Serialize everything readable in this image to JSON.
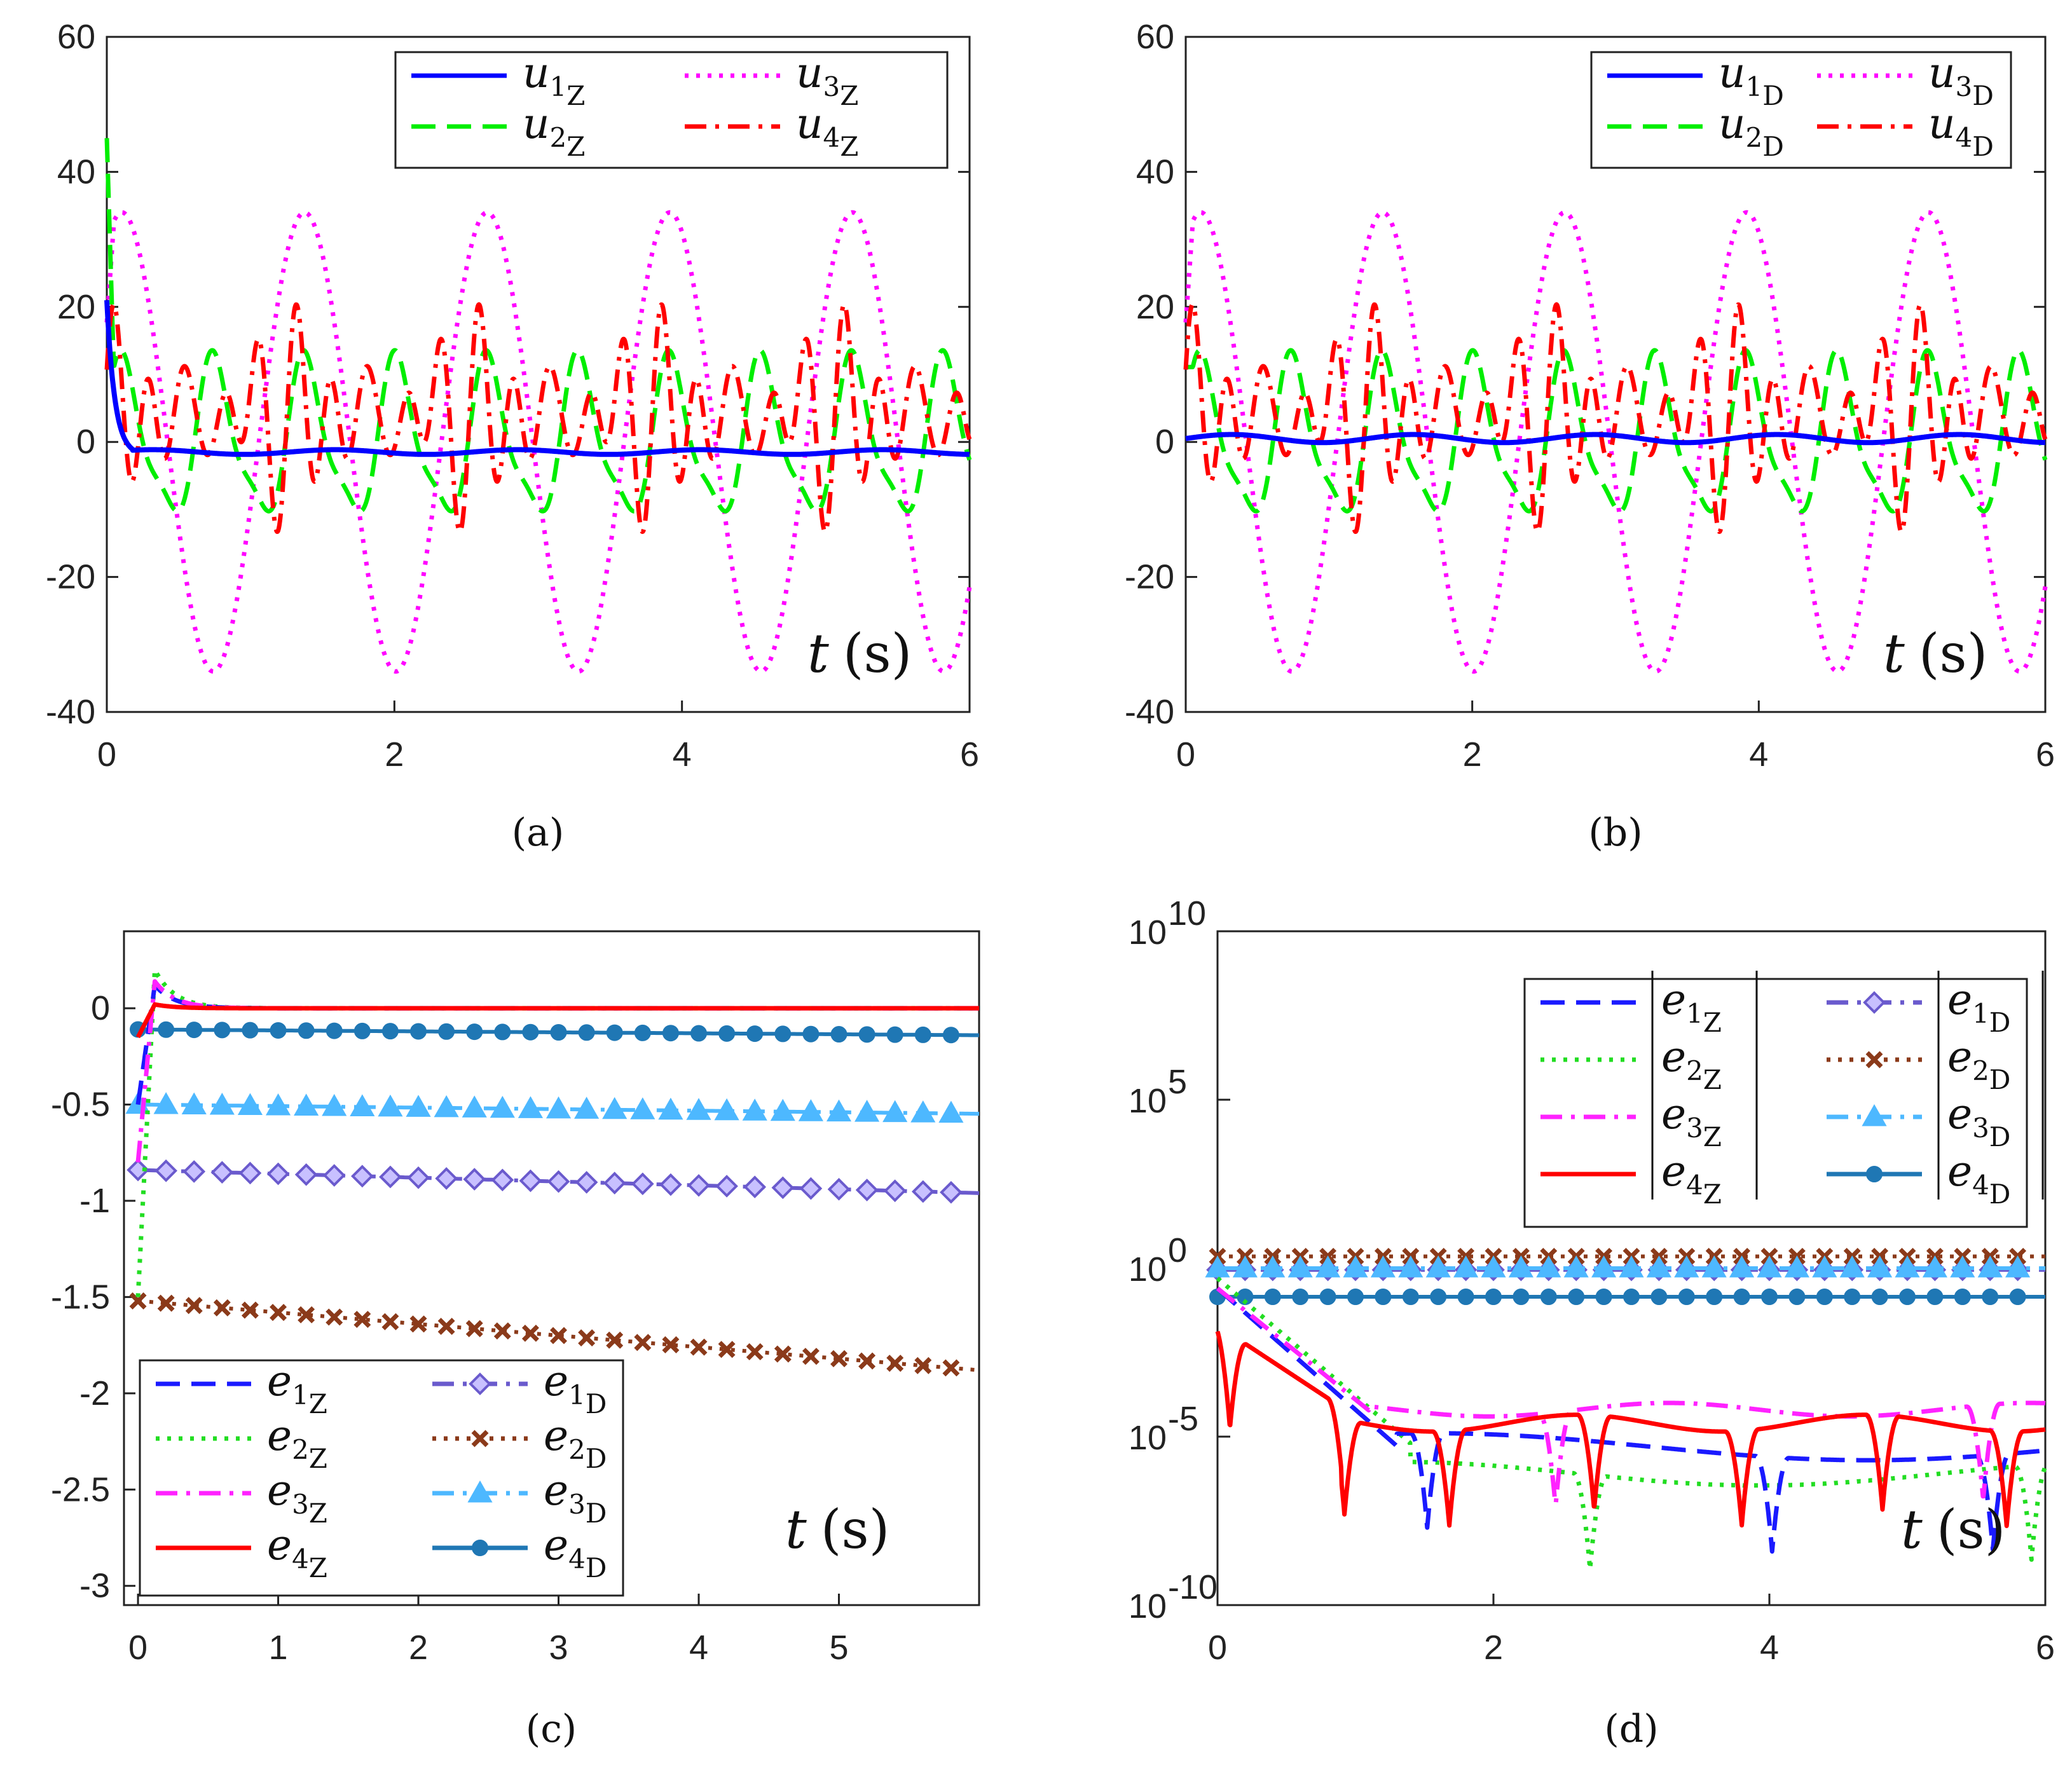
{
  "chart_data": [
    {
      "id": "a",
      "type": "line",
      "caption": "(a)",
      "annotation": {
        "var": "t",
        "unit": "(s)"
      },
      "xlim": [
        0,
        6
      ],
      "ylim": [
        -40,
        60
      ],
      "xticks": [
        "0",
        "2",
        "4",
        "6"
      ],
      "yticks": [
        "60",
        "40",
        "20",
        "0",
        "-20",
        "-40"
      ],
      "series": [
        {
          "name": "u",
          "sub1": "1",
          "sub2": "Z",
          "color": "#0000ff",
          "style": "solid"
        },
        {
          "name": "u",
          "sub1": "2",
          "sub2": "Z",
          "color": "#00ee00",
          "style": "dash"
        },
        {
          "name": "u",
          "sub1": "3",
          "sub2": "Z",
          "color": "#ff00ff",
          "style": "dot"
        },
        {
          "name": "u",
          "sub1": "4",
          "sub2": "Z",
          "color": "#ff0000",
          "style": "dashdot"
        }
      ]
    },
    {
      "id": "b",
      "type": "line",
      "caption": "(b)",
      "annotation": {
        "var": "t",
        "unit": "(s)"
      },
      "xlim": [
        0,
        6
      ],
      "ylim": [
        -40,
        60
      ],
      "xticks": [
        "0",
        "2",
        "4",
        "6"
      ],
      "yticks": [
        "60",
        "40",
        "20",
        "0",
        "-20",
        "-40"
      ],
      "series": [
        {
          "name": "u",
          "sub1": "1",
          "sub2": "D",
          "color": "#0000ff",
          "style": "solid"
        },
        {
          "name": "u",
          "sub1": "2",
          "sub2": "D",
          "color": "#00ee00",
          "style": "dash"
        },
        {
          "name": "u",
          "sub1": "3",
          "sub2": "D",
          "color": "#ff00ff",
          "style": "dot"
        },
        {
          "name": "u",
          "sub1": "4",
          "sub2": "D",
          "color": "#ff0000",
          "style": "dashdot"
        }
      ]
    },
    {
      "id": "c",
      "type": "line",
      "caption": "(c)",
      "annotation": {
        "var": "t",
        "unit": "(s)"
      },
      "xlim": [
        -0.1,
        6
      ],
      "ylim": [
        -3.1,
        0.4
      ],
      "xticks": [
        "0",
        "1",
        "2",
        "3",
        "4",
        "5"
      ],
      "yticks": [
        "0",
        "-0.5",
        "-1",
        "-1.5",
        "-2",
        "-2.5",
        "-3"
      ],
      "series": [
        {
          "name": "e",
          "sub1": "1",
          "sub2": "Z",
          "color": "#1a1aff",
          "style": "dash"
        },
        {
          "name": "e",
          "sub1": "2",
          "sub2": "Z",
          "color": "#22dd22",
          "style": "dot"
        },
        {
          "name": "e",
          "sub1": "3",
          "sub2": "Z",
          "color": "#ff22ff",
          "style": "dashdot"
        },
        {
          "name": "e",
          "sub1": "4",
          "sub2": "Z",
          "color": "#ff0000",
          "style": "solid"
        },
        {
          "name": "e",
          "sub1": "1",
          "sub2": "D",
          "color": "#6a5acd",
          "style": "dashdot",
          "marker": "diamond",
          "value": -0.84
        },
        {
          "name": "e",
          "sub1": "2",
          "sub2": "D",
          "color": "#8b3a1a",
          "style": "dot",
          "marker": "x",
          "value": -1.52
        },
        {
          "name": "e",
          "sub1": "3",
          "sub2": "D",
          "color": "#4db8ff",
          "style": "dashdot",
          "marker": "triangle",
          "value": -0.5
        },
        {
          "name": "e",
          "sub1": "4",
          "sub2": "D",
          "color": "#1f77b4",
          "style": "solid",
          "marker": "circle",
          "value": -0.11
        }
      ]
    },
    {
      "id": "d",
      "type": "line",
      "caption": "(d)",
      "annotation": {
        "var": "t",
        "unit": "(s)"
      },
      "yscale": "log",
      "xlim": [
        0,
        6
      ],
      "ylim_exp": [
        -10,
        10
      ],
      "xticks": [
        "0",
        "2",
        "4",
        "6"
      ],
      "yticks": [
        {
          "base": "10",
          "exp": "10"
        },
        {
          "base": "10",
          "exp": "5"
        },
        {
          "base": "10",
          "exp": "0"
        },
        {
          "base": "10",
          "exp": "-5"
        },
        {
          "base": "10",
          "exp": "-10"
        }
      ],
      "series": [
        {
          "name": "e",
          "sub1": "1",
          "sub2": "Z",
          "color": "#1a1aff",
          "style": "dash",
          "abs": true
        },
        {
          "name": "e",
          "sub1": "2",
          "sub2": "Z",
          "color": "#22dd22",
          "style": "dot",
          "abs": true
        },
        {
          "name": "e",
          "sub1": "3",
          "sub2": "Z",
          "color": "#ff22ff",
          "style": "dashdot",
          "abs": true
        },
        {
          "name": "e",
          "sub1": "4",
          "sub2": "Z",
          "color": "#ff0000",
          "style": "solid",
          "abs": true
        },
        {
          "name": "e",
          "sub1": "1",
          "sub2": "D",
          "color": "#6a5acd",
          "style": "dashdot",
          "marker": "diamond",
          "abs": true
        },
        {
          "name": "e",
          "sub1": "2",
          "sub2": "D",
          "color": "#8b3a1a",
          "style": "dot",
          "marker": "x",
          "abs": true
        },
        {
          "name": "e",
          "sub1": "3",
          "sub2": "D",
          "color": "#4db8ff",
          "style": "dashdot",
          "marker": "triangle",
          "abs": true
        },
        {
          "name": "e",
          "sub1": "4",
          "sub2": "D",
          "color": "#1f77b4",
          "style": "solid",
          "marker": "circle",
          "abs": true
        }
      ]
    }
  ]
}
